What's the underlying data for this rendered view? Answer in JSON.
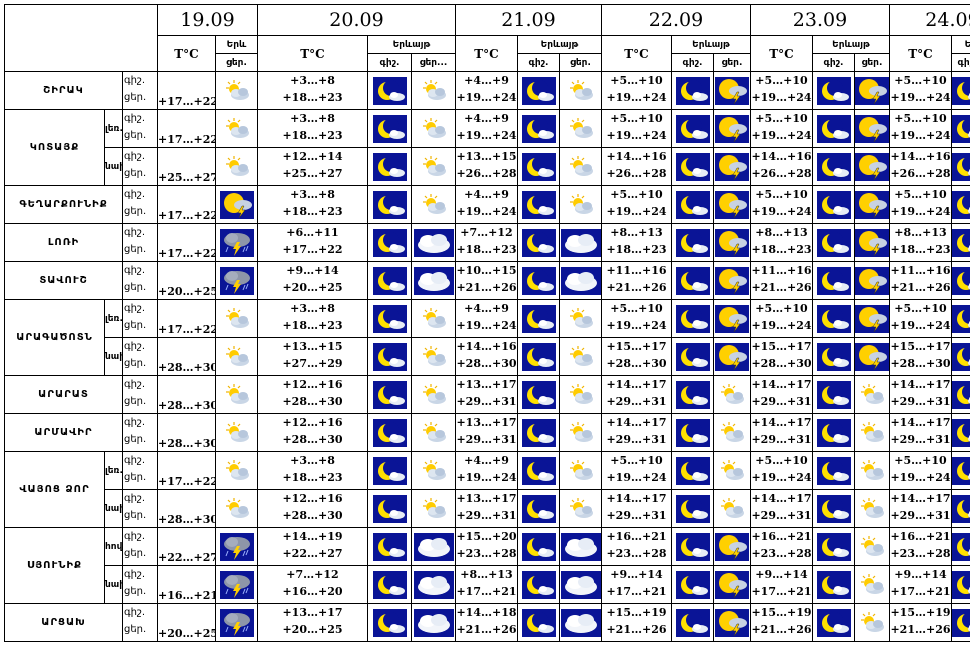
{
  "header": {
    "dates": [
      "19.09",
      "20.09",
      "21.09",
      "22.09",
      "23.09",
      "24.09"
    ],
    "temp_label": "T°C",
    "ev_short": "Երև",
    "ev_label": "Երևայթ",
    "night": "գիշ.",
    "day": "ցեր.",
    "day_trunc": "ցեր..."
  },
  "labels": {
    "night": "գիշ.",
    "day": "ցեր."
  },
  "regions": [
    {
      "name": "ՇԻՐԱԿ",
      "rows": [
        {
          "sub": "",
          "d1": {
            "t": "+17…+22",
            "icon": "sun-cloud-icon"
          },
          "days": [
            {
              "n": "+3…+8",
              "d": "+18…+23",
              "i1": "moon-night-icon",
              "i2": "sun-cloud-icon"
            },
            {
              "n": "+4…+9",
              "d": "+19…+24",
              "i1": "moon-night-icon",
              "i2": "sun-cloud-icon"
            },
            {
              "n": "+5…+10",
              "d": "+19…+24",
              "i1": "moon-night-icon",
              "i2": "sun-thunder-icon"
            },
            {
              "n": "+5…+10",
              "d": "+19…+24",
              "i1": "moon-night-icon",
              "i2": "sun-thunder-icon"
            },
            {
              "n": "+5…+10",
              "d": "+19…+24",
              "i1": "moon-night-icon",
              "i2": "sun-thunder-icon"
            }
          ]
        }
      ]
    },
    {
      "name": "ԿՈՏԱՅՔ",
      "rows": [
        {
          "sub": "լեռ.",
          "d1": {
            "t": "+17…+22",
            "icon": "sun-cloud-icon"
          },
          "days": [
            {
              "n": "+3…+8",
              "d": "+18…+23",
              "i1": "moon-night-icon",
              "i2": "sun-cloud-icon"
            },
            {
              "n": "+4…+9",
              "d": "+19…+24",
              "i1": "moon-night-icon",
              "i2": "sun-cloud-icon"
            },
            {
              "n": "+5…+10",
              "d": "+19…+24",
              "i1": "moon-night-icon",
              "i2": "sun-thunder-icon"
            },
            {
              "n": "+5…+10",
              "d": "+19…+24",
              "i1": "moon-night-icon",
              "i2": "sun-thunder-icon"
            },
            {
              "n": "+5…+10",
              "d": "+19…+24",
              "i1": "moon-night-icon",
              "i2": "sun-thunder-icon"
            }
          ]
        },
        {
          "sub": "նախ.",
          "d1": {
            "t": "+25…+27",
            "icon": "sun-cloud-icon"
          },
          "days": [
            {
              "n": "+12…+14",
              "d": "+25…+27",
              "i1": "moon-night-icon",
              "i2": "sun-cloud-icon"
            },
            {
              "n": "+13…+15",
              "d": "+26…+28",
              "i1": "moon-night-icon",
              "i2": "sun-cloud-icon"
            },
            {
              "n": "+14…+16",
              "d": "+26…+28",
              "i1": "moon-night-icon",
              "i2": "sun-thunder-icon"
            },
            {
              "n": "+14…+16",
              "d": "+26…+28",
              "i1": "moon-night-icon",
              "i2": "sun-thunder-icon"
            },
            {
              "n": "+14…+16",
              "d": "+26…+28",
              "i1": "moon-night-icon",
              "i2": "sun-thunder-icon"
            }
          ]
        }
      ]
    },
    {
      "name": "ԳԵՂԱՐՔՈՒՆԻՔ",
      "rows": [
        {
          "sub": "",
          "d1": {
            "t": "+17…+22",
            "icon": "sun-thunder-icon"
          },
          "days": [
            {
              "n": "+3…+8",
              "d": "+18…+23",
              "i1": "moon-night-icon",
              "i2": "sun-cloud-icon"
            },
            {
              "n": "+4…+9",
              "d": "+19…+24",
              "i1": "moon-night-icon",
              "i2": "sun-cloud-icon"
            },
            {
              "n": "+5…+10",
              "d": "+19…+24",
              "i1": "moon-night-icon",
              "i2": "sun-thunder-icon"
            },
            {
              "n": "+5…+10",
              "d": "+19…+24",
              "i1": "moon-night-icon",
              "i2": "sun-thunder-icon"
            },
            {
              "n": "+5…+10",
              "d": "+19…+24",
              "i1": "moon-night-icon",
              "i2": "sun-thunder-icon"
            }
          ]
        }
      ]
    },
    {
      "name": "ԼՈՌԻ",
      "rows": [
        {
          "sub": "",
          "d1": {
            "t": "+17…+22",
            "icon": "storm-cloud-icon"
          },
          "days": [
            {
              "n": "+6…+11",
              "d": "+17…+22",
              "i1": "moon-night-icon",
              "i2": "cloud-icon"
            },
            {
              "n": "+7…+12",
              "d": "+18…+23",
              "i1": "moon-night-icon",
              "i2": "cloud-icon"
            },
            {
              "n": "+8…+13",
              "d": "+18…+23",
              "i1": "moon-night-icon",
              "i2": "sun-thunder-icon"
            },
            {
              "n": "+8…+13",
              "d": "+18…+23",
              "i1": "moon-night-icon",
              "i2": "sun-thunder-icon"
            },
            {
              "n": "+8…+13",
              "d": "+18…+23",
              "i1": "moon-night-icon",
              "i2": "sun-thunder-icon"
            }
          ]
        }
      ]
    },
    {
      "name": "ՏԱՎՈՒՇ",
      "rows": [
        {
          "sub": "",
          "d1": {
            "t": "+20…+25",
            "icon": "storm-cloud-icon"
          },
          "days": [
            {
              "n": "+9…+14",
              "d": "+20…+25",
              "i1": "moon-night-icon",
              "i2": "cloud-icon"
            },
            {
              "n": "+10…+15",
              "d": "+21…+26",
              "i1": "moon-night-icon",
              "i2": "cloud-icon"
            },
            {
              "n": "+11…+16",
              "d": "+21…+26",
              "i1": "moon-night-icon",
              "i2": "sun-thunder-icon"
            },
            {
              "n": "+11…+16",
              "d": "+21…+26",
              "i1": "moon-night-icon",
              "i2": "sun-thunder-icon"
            },
            {
              "n": "+11…+16",
              "d": "+21…+26",
              "i1": "moon-night-icon",
              "i2": "sun-thunder-icon"
            }
          ]
        }
      ]
    },
    {
      "name": "ԱՐԱԳԱԾՈՏՆ",
      "rows": [
        {
          "sub": "լեռ.",
          "d1": {
            "t": "+17…+22",
            "icon": "sun-cloud-icon"
          },
          "days": [
            {
              "n": "+3…+8",
              "d": "+18…+23",
              "i1": "moon-night-icon",
              "i2": "sun-cloud-icon"
            },
            {
              "n": "+4…+9",
              "d": "+19…+24",
              "i1": "moon-night-icon",
              "i2": "sun-cloud-icon"
            },
            {
              "n": "+5…+10",
              "d": "+19…+24",
              "i1": "moon-night-icon",
              "i2": "sun-thunder-icon"
            },
            {
              "n": "+5…+10",
              "d": "+19…+24",
              "i1": "moon-night-icon",
              "i2": "sun-thunder-icon"
            },
            {
              "n": "+5…+10",
              "d": "+19…+24",
              "i1": "moon-night-icon",
              "i2": "sun-thunder-icon"
            }
          ]
        },
        {
          "sub": "նախ",
          "d1": {
            "t": "+28…+30",
            "icon": "sun-cloud-icon"
          },
          "days": [
            {
              "n": "+13…+15",
              "d": "+27…+29",
              "i1": "moon-night-icon",
              "i2": "sun-cloud-icon"
            },
            {
              "n": "+14…+16",
              "d": "+28…+30",
              "i1": "moon-night-icon",
              "i2": "sun-cloud-icon"
            },
            {
              "n": "+15…+17",
              "d": "+28…+30",
              "i1": "moon-night-icon",
              "i2": "sun-thunder-icon"
            },
            {
              "n": "+15…+17",
              "d": "+28…+30",
              "i1": "moon-night-icon",
              "i2": "sun-thunder-icon"
            },
            {
              "n": "+15…+17",
              "d": "+28…+30",
              "i1": "moon-night-icon",
              "i2": "sun-cloud-icon"
            }
          ]
        }
      ]
    },
    {
      "name": "ԱՐԱՐԱՏ",
      "rows": [
        {
          "sub": "",
          "d1": {
            "t": "+28…+30",
            "icon": "sun-cloud-icon"
          },
          "days": [
            {
              "n": "+12…+16",
              "d": "+28…+30",
              "i1": "moon-night-icon",
              "i2": "sun-cloud-icon"
            },
            {
              "n": "+13…+17",
              "d": "+29…+31",
              "i1": "moon-night-icon",
              "i2": "sun-cloud-icon"
            },
            {
              "n": "+14…+17",
              "d": "+29…+31",
              "i1": "moon-night-icon",
              "i2": "sun-cloud-icon"
            },
            {
              "n": "+14…+17",
              "d": "+29…+31",
              "i1": "moon-night-icon",
              "i2": "sun-cloud-icon"
            },
            {
              "n": "+14…+17",
              "d": "+29…+31",
              "i1": "moon-night-icon",
              "i2": "sun-cloud-icon"
            }
          ]
        }
      ]
    },
    {
      "name": "ԱՐՄԱՎԻՐ",
      "rows": [
        {
          "sub": "",
          "d1": {
            "t": "+28…+30",
            "icon": "sun-cloud-icon"
          },
          "days": [
            {
              "n": "+12…+16",
              "d": "+28…+30",
              "i1": "moon-night-icon",
              "i2": "sun-cloud-icon"
            },
            {
              "n": "+13…+17",
              "d": "+29…+31",
              "i1": "moon-night-icon",
              "i2": "sun-cloud-icon"
            },
            {
              "n": "+14…+17",
              "d": "+29…+31",
              "i1": "moon-night-icon",
              "i2": "sun-cloud-icon"
            },
            {
              "n": "+14…+17",
              "d": "+29…+31",
              "i1": "moon-night-icon",
              "i2": "sun-cloud-icon"
            },
            {
              "n": "+14…+17",
              "d": "+29…+31",
              "i1": "moon-night-icon",
              "i2": "sun-cloud-icon"
            }
          ]
        }
      ]
    },
    {
      "name": "ՎԱՅՈՑ ՁՈՐ",
      "rows": [
        {
          "sub": "լեռ.",
          "d1": {
            "t": "+17…+22",
            "icon": "sun-cloud-icon"
          },
          "days": [
            {
              "n": "+3…+8",
              "d": "+18…+23",
              "i1": "moon-night-icon",
              "i2": "sun-cloud-icon"
            },
            {
              "n": "+4…+9",
              "d": "+19…+24",
              "i1": "moon-night-icon",
              "i2": "sun-cloud-icon"
            },
            {
              "n": "+5…+10",
              "d": "+19…+24",
              "i1": "moon-night-icon",
              "i2": "sun-cloud-icon"
            },
            {
              "n": "+5…+10",
              "d": "+19…+24",
              "i1": "moon-night-icon",
              "i2": "sun-cloud-icon"
            },
            {
              "n": "+5…+10",
              "d": "+19…+24",
              "i1": "moon-night-icon",
              "i2": "sun-cloud-icon"
            }
          ]
        },
        {
          "sub": "նախ",
          "d1": {
            "t": "+28…+30",
            "icon": "sun-cloud-icon"
          },
          "days": [
            {
              "n": "+12…+16",
              "d": "+28…+30",
              "i1": "moon-night-icon",
              "i2": "sun-cloud-icon"
            },
            {
              "n": "+13…+17",
              "d": "+29…+31",
              "i1": "moon-night-icon",
              "i2": "sun-cloud-icon"
            },
            {
              "n": "+14…+17",
              "d": "+29…+31",
              "i1": "moon-night-icon",
              "i2": "sun-cloud-icon"
            },
            {
              "n": "+14…+17",
              "d": "+29…+31",
              "i1": "moon-night-icon",
              "i2": "sun-cloud-icon"
            },
            {
              "n": "+14…+17",
              "d": "+29…+31",
              "i1": "moon-night-icon",
              "i2": "sun-cloud-icon"
            }
          ]
        }
      ]
    },
    {
      "name": "ՍՅՈՒՆԻՔ",
      "rows": [
        {
          "sub": "հով.",
          "d1": {
            "t": "+22…+27",
            "icon": "storm-cloud-icon"
          },
          "days": [
            {
              "n": "+14…+19",
              "d": "+22…+27",
              "i1": "moon-night-icon",
              "i2": "cloud-icon"
            },
            {
              "n": "+15…+20",
              "d": "+23…+28",
              "i1": "moon-night-icon",
              "i2": "cloud-icon"
            },
            {
              "n": "+16…+21",
              "d": "+23…+28",
              "i1": "moon-night-icon",
              "i2": "sun-thunder-icon"
            },
            {
              "n": "+16…+21",
              "d": "+23…+28",
              "i1": "moon-night-icon",
              "i2": "sun-cloud-icon"
            },
            {
              "n": "+16…+21",
              "d": "+23…+28",
              "i1": "moon-night-icon",
              "i2": "sun-cloud-icon"
            }
          ]
        },
        {
          "sub": "նախ",
          "d1": {
            "t": "+16…+21",
            "icon": "storm-cloud-icon"
          },
          "days": [
            {
              "n": "+7…+12",
              "d": "+16…+20",
              "i1": "moon-night-icon",
              "i2": "cloud-icon"
            },
            {
              "n": "+8…+13",
              "d": "+17…+21",
              "i1": "moon-night-icon",
              "i2": "cloud-icon"
            },
            {
              "n": "+9…+14",
              "d": "+17…+21",
              "i1": "moon-night-icon",
              "i2": "sun-thunder-icon"
            },
            {
              "n": "+9…+14",
              "d": "+17…+21",
              "i1": "moon-night-icon",
              "i2": "sun-cloud-icon"
            },
            {
              "n": "+9…+14",
              "d": "+17…+21",
              "i1": "moon-night-icon",
              "i2": "sun-cloud-icon"
            }
          ]
        }
      ]
    },
    {
      "name": "ԱՐՑԱԽ",
      "rows": [
        {
          "sub": "",
          "d1": {
            "t": "+20…+25",
            "icon": "storm-cloud-icon"
          },
          "days": [
            {
              "n": "+13…+17",
              "d": "+20…+25",
              "i1": "moon-night-icon",
              "i2": "cloud-icon"
            },
            {
              "n": "+14…+18",
              "d": "+21…+26",
              "i1": "moon-night-icon",
              "i2": "cloud-icon"
            },
            {
              "n": "+15…+19",
              "d": "+21…+26",
              "i1": "moon-night-icon",
              "i2": "sun-thunder-icon"
            },
            {
              "n": "+15…+19",
              "d": "+21…+26",
              "i1": "moon-night-icon",
              "i2": "sun-cloud-icon"
            },
            {
              "n": "+15…+19",
              "d": "+21…+26",
              "i1": "moon-night-icon",
              "i2": "sun-cloud-icon"
            }
          ]
        }
      ]
    }
  ]
}
